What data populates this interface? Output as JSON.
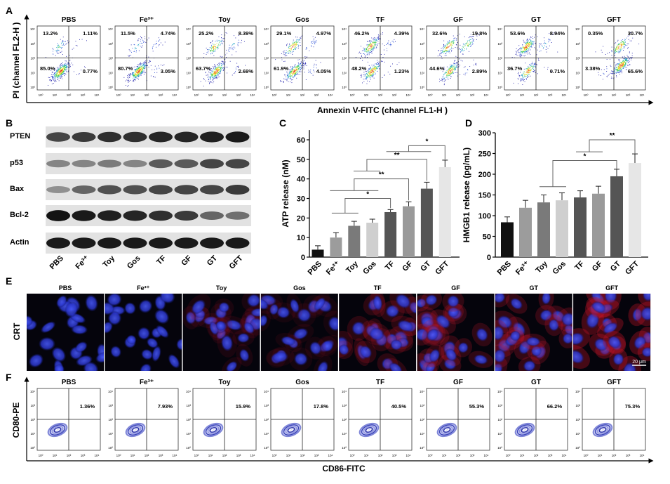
{
  "panel_labels": {
    "a": "A",
    "b": "B",
    "c": "C",
    "d": "D",
    "e": "E",
    "f": "F"
  },
  "groups": [
    "PBS",
    "Fe³⁺",
    "Toy",
    "Gos",
    "TF",
    "GF",
    "GT",
    "GFT"
  ],
  "log_tick_labels": [
    "10⁰",
    "10¹",
    "10²",
    "10³",
    "10⁴"
  ],
  "panel_a": {
    "ylabel": "PI (channel FL2-H )",
    "xlabel": "Annexin V-FITC (channel FL1-H )",
    "plots": [
      {
        "ul": "13.2%",
        "ur": "1.11%",
        "ll": "85.0%",
        "lr": "0.77%"
      },
      {
        "ul": "11.5%",
        "ur": "4.74%",
        "ll": "80.7%",
        "lr": "3.05%"
      },
      {
        "ul": "25.2%",
        "ur": "8.39%",
        "ll": "63.7%",
        "lr": "2.69%"
      },
      {
        "ul": "29.1%",
        "ur": "4.97%",
        "ll": "61.9%",
        "lr": "4.05%"
      },
      {
        "ul": "46.2%",
        "ur": "4.39%",
        "ll": "48.2%",
        "lr": "1.23%"
      },
      {
        "ul": "32.6%",
        "ur": "19.8%",
        "ll": "44.6%",
        "lr": "2.89%"
      },
      {
        "ul": "53.6%",
        "ur": "8.94%",
        "ll": "36.7%",
        "lr": "0.71%"
      },
      {
        "ul": "0.35%",
        "ur": "30.7%",
        "ll": "3.38%",
        "lr": "65.6%"
      }
    ]
  },
  "panel_b": {
    "proteins": [
      "PTEN",
      "p53",
      "Bax",
      "Bcl-2",
      "Actin"
    ]
  },
  "chart_data": [
    {
      "panel": "C",
      "type": "bar",
      "categories": [
        "PBS",
        "Fe³⁺",
        "Toy",
        "Gos",
        "TF",
        "GF",
        "GT",
        "GFT"
      ],
      "values": [
        3.8,
        10.0,
        16.0,
        17.6,
        23.0,
        26.0,
        35.0,
        46.0
      ],
      "errors": [
        2.0,
        2.5,
        2.3,
        1.8,
        1.3,
        2.3,
        3.3,
        3.6
      ],
      "colors": [
        "#111111",
        "#9c9c9c",
        "#7a7a7a",
        "#cfcfcf",
        "#555555",
        "#9a9a9a",
        "#555555",
        "#e6e6e6"
      ],
      "ylabel": "ATP release (nM)",
      "ylim": [
        0,
        65
      ],
      "yticks": [
        "0",
        "10",
        "20",
        "30",
        "40",
        "50",
        "60"
      ],
      "ytick_values": [
        0,
        10,
        20,
        30,
        40,
        50,
        60
      ],
      "annotations": [
        {
          "group": [
            1,
            2
          ],
          "group_y": 22.5,
          "top_y": 30,
          "target": 4,
          "end_y": 25,
          "label": "*"
        },
        {
          "group": [
            0.9,
            3.1
          ],
          "group_y": 34,
          "top_y": 40,
          "target": 5,
          "end_y": 29,
          "label": "**"
        },
        {
          "group": [
            2.2,
            3.2
          ],
          "group_y": 44,
          "top_y": 50,
          "target": 6,
          "end_y": 39,
          "label": "**"
        },
        {
          "group": [
            4,
            6
          ],
          "group_y": 54,
          "top_y": 57,
          "target": 7,
          "end_y": 50,
          "label": "*"
        }
      ]
    },
    {
      "panel": "D",
      "type": "bar",
      "categories": [
        "PBS",
        "Fe³⁺",
        "Toy",
        "Gos",
        "TF",
        "GF",
        "GT",
        "GFT"
      ],
      "values": [
        84,
        119,
        132,
        137,
        144,
        153,
        195,
        227
      ],
      "errors": [
        13,
        18,
        18,
        18,
        16,
        18,
        17,
        22
      ],
      "colors": [
        "#111111",
        "#9c9c9c",
        "#7a7a7a",
        "#cfcfcf",
        "#555555",
        "#9a9a9a",
        "#555555",
        "#e6e6e6"
      ],
      "ylabel": "HMGB1 release (pg/mL)",
      "ylim": [
        0,
        300
      ],
      "yticks": [
        "0",
        "50",
        "100",
        "150",
        "200",
        "250",
        "300"
      ],
      "ytick_values": [
        0,
        50,
        100,
        150,
        200,
        250,
        300
      ],
      "annotations": [
        {
          "group": [
            2,
            3
          ],
          "group_y": 170,
          "top_y": 233,
          "target": 6,
          "end_y": 213,
          "label": "*"
        },
        {
          "group": [
            4,
            5
          ],
          "group_y": 254,
          "top_y": 283,
          "target": 7,
          "end_y": 250,
          "label": "**"
        }
      ]
    }
  ],
  "panel_e": {
    "row_label": "CRT",
    "scale_bar": "20 μm"
  },
  "panel_f": {
    "ylabel": "CD80-PE",
    "xlabel": "CD86-FITC",
    "values": [
      "1.36%",
      "7.93%",
      "15.9%",
      "17.8%",
      "40.5%",
      "55.3%",
      "66.2%",
      "75.3%"
    ]
  }
}
